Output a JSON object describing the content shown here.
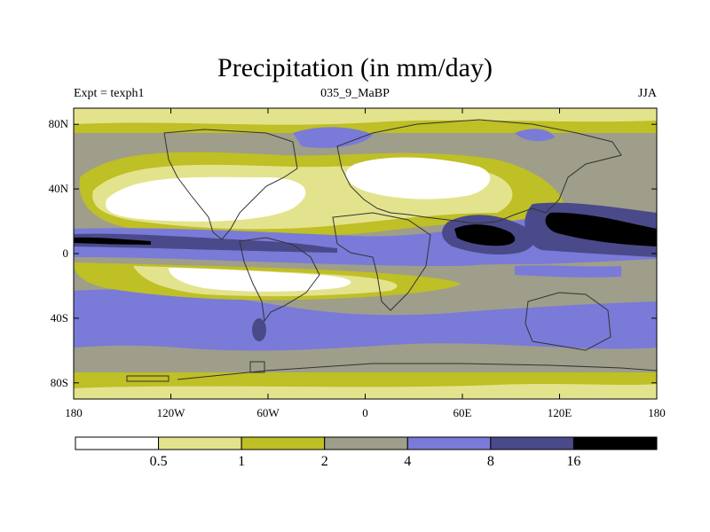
{
  "title": "Precipitation (in mm/day)",
  "left_label": "Expt = texph1",
  "center_label": "035_9_MaBP",
  "right_label": "JJA",
  "lat_ticks": [
    {
      "label": "80N",
      "value": 80
    },
    {
      "label": "40N",
      "value": 40
    },
    {
      "label": "0",
      "value": 0
    },
    {
      "label": "40S",
      "value": -40
    },
    {
      "label": "80S",
      "value": -80
    }
  ],
  "lon_ticks": [
    {
      "label": "180",
      "value": -180
    },
    {
      "label": "120W",
      "value": -120
    },
    {
      "label": "60W",
      "value": -60
    },
    {
      "label": "0",
      "value": 0
    },
    {
      "label": "60E",
      "value": 60
    },
    {
      "label": "120E",
      "value": 120
    },
    {
      "label": "180",
      "value": 180
    }
  ],
  "colorbar": {
    "colors": [
      "#ffffff",
      "#e3e38d",
      "#bfbf26",
      "#9e9e8b",
      "#7a7ad8",
      "#4a4a8a",
      "#000000"
    ],
    "labels": [
      "0.5",
      "1",
      "2",
      "4",
      "8",
      "16"
    ]
  }
}
